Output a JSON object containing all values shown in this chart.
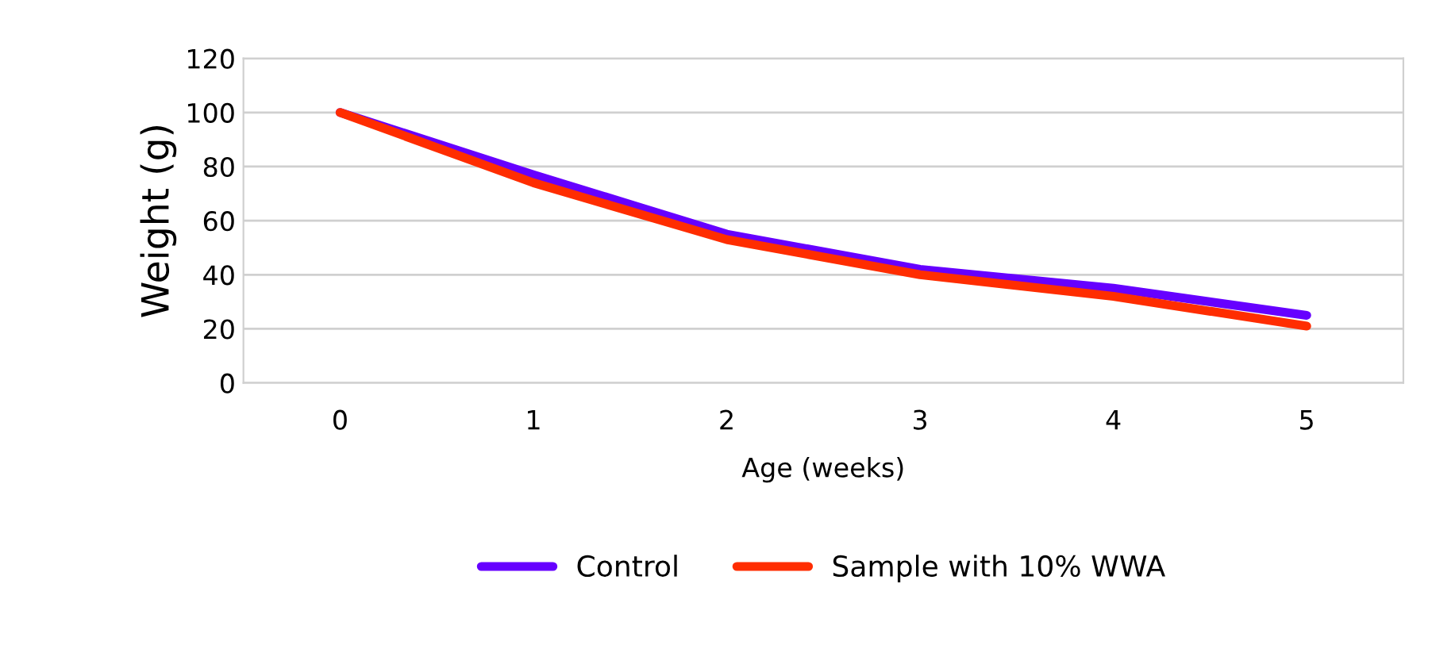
{
  "chart_data": {
    "type": "line",
    "xlabel": "Age (weeks)",
    "ylabel": "Weight (g)",
    "categories": [
      "0",
      "1",
      "2",
      "3",
      "4",
      "5"
    ],
    "series": [
      {
        "name": "Control",
        "color": "#6600ff",
        "values": [
          100,
          77,
          55,
          42,
          35,
          25
        ]
      },
      {
        "name": "Sample with 10% WWA",
        "color": "#ff2d00",
        "values": [
          100,
          74,
          53,
          40,
          32,
          21
        ]
      }
    ],
    "ylim": [
      0,
      120
    ],
    "yticks": [
      0,
      20,
      40,
      60,
      80,
      100,
      120
    ],
    "grid": "y",
    "legend": "bottom",
    "marker": "none",
    "line_style": "solid"
  }
}
